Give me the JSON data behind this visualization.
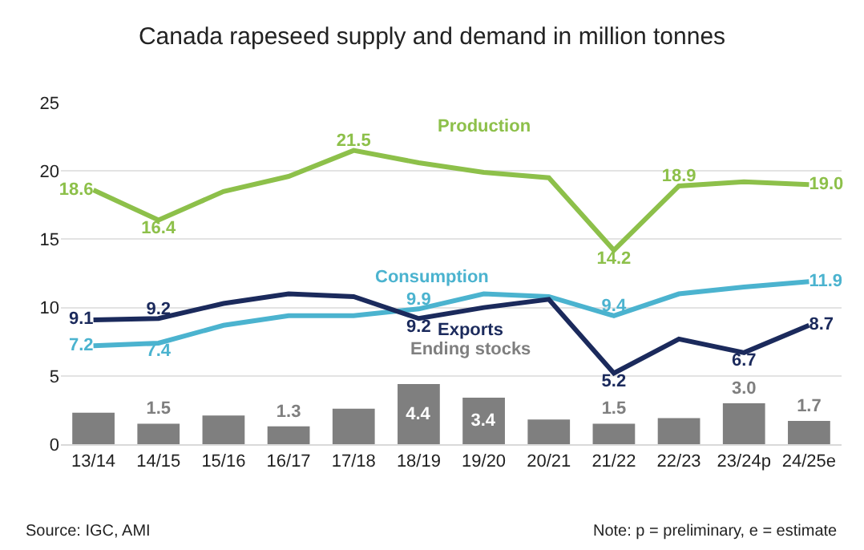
{
  "chart_data": {
    "type": "line",
    "title": "Canada rapeseed supply and demand in million tonnes",
    "categories": [
      "13/14",
      "14/15",
      "15/16",
      "16/17",
      "17/18",
      "18/19",
      "19/20",
      "20/21",
      "21/22",
      "22/23",
      "23/24p",
      "24/25e"
    ],
    "series": [
      {
        "name": "Ending stocks",
        "type": "bar",
        "color": "#7f7f7f",
        "values": [
          2.3,
          1.5,
          2.1,
          1.3,
          2.6,
          4.4,
          3.4,
          1.8,
          1.5,
          1.9,
          3.0,
          1.7
        ],
        "value_labels": [
          null,
          "1.5",
          null,
          "1.3",
          null,
          "4.4",
          "3.4",
          null,
          "1.5",
          null,
          "3.0",
          "1.7"
        ]
      },
      {
        "name": "Production",
        "color": "#8dc04a",
        "values": [
          18.6,
          16.4,
          18.5,
          19.6,
          21.5,
          20.6,
          19.9,
          19.5,
          14.2,
          18.9,
          19.2,
          19.0
        ],
        "value_labels": [
          "18.6",
          "16.4",
          null,
          null,
          "21.5",
          null,
          null,
          null,
          "14.2",
          "18.9",
          null,
          "19.0"
        ]
      },
      {
        "name": "Consumption",
        "color": "#4bb3cf",
        "values": [
          7.2,
          7.4,
          8.7,
          9.4,
          9.4,
          9.9,
          11.0,
          10.8,
          9.4,
          11.0,
          11.5,
          11.9
        ],
        "value_labels": [
          "7.2",
          "7.4",
          null,
          null,
          null,
          "9.9",
          null,
          null,
          "9.4",
          null,
          null,
          "11.9"
        ]
      },
      {
        "name": "Exports",
        "color": "#1b2a5c",
        "values": [
          9.1,
          9.2,
          10.3,
          11.0,
          10.8,
          9.2,
          10.0,
          10.6,
          5.2,
          7.7,
          6.7,
          8.7
        ],
        "value_labels": [
          "9.1",
          "9.2",
          null,
          null,
          null,
          "9.2",
          null,
          null,
          "5.2",
          null,
          "6.7",
          "8.7"
        ]
      }
    ],
    "ylim": [
      0,
      25
    ],
    "yticks": [
      0,
      5,
      10,
      15,
      20,
      25
    ],
    "grid": "y",
    "legend": false,
    "marker": "none",
    "line_style": "solid",
    "annotations": [
      "Source: IGC, AMI",
      "Note: p = preliminary, e = estimate"
    ]
  }
}
